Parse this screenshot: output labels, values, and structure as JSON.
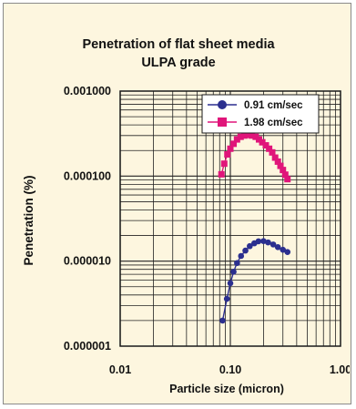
{
  "chart_data": {
    "type": "scatter",
    "title": "Penetration of flat sheet media",
    "subtitle": "ULPA grade",
    "xlabel": "Particle size (micron)",
    "ylabel": "Penetration (%)",
    "x_scale": "log",
    "y_scale": "log",
    "xlim": [
      0.01,
      1.0
    ],
    "ylim": [
      1e-06,
      0.001
    ],
    "x_ticks": [
      "0.01",
      "0.10",
      "1.00"
    ],
    "y_ticks": [
      "0.001000",
      "0.000100",
      "0.000010",
      "0.000001"
    ],
    "grid": true,
    "legend_position": "top-right",
    "series": [
      {
        "name": "0.91 cm/sec",
        "color": "#2b2f8f",
        "marker": "circle",
        "x": [
          0.085,
          0.093,
          0.1,
          0.107,
          0.115,
          0.125,
          0.137,
          0.15,
          0.165,
          0.18,
          0.2,
          0.22,
          0.245,
          0.27,
          0.3,
          0.33
        ],
        "y": [
          2e-06,
          3.6e-06,
          5.5e-06,
          7.5e-06,
          9.5e-06,
          1.15e-05,
          1.33e-05,
          1.5e-05,
          1.62e-05,
          1.71e-05,
          1.72e-05,
          1.66e-05,
          1.57e-05,
          1.46e-05,
          1.36e-05,
          1.28e-05
        ]
      },
      {
        "name": "1.98 cm/sec",
        "color": "#e0157a",
        "marker": "square",
        "x": [
          0.083,
          0.088,
          0.094,
          0.1,
          0.107,
          0.115,
          0.124,
          0.134,
          0.145,
          0.157,
          0.17,
          0.182,
          0.195,
          0.21,
          0.225,
          0.24,
          0.255,
          0.27,
          0.285,
          0.3,
          0.315,
          0.33
        ],
        "y": [
          0.000105,
          0.00014,
          0.00018,
          0.00021,
          0.00024,
          0.00027,
          0.00029,
          0.0003,
          0.000305,
          0.0003,
          0.00029,
          0.00027,
          0.00025,
          0.00023,
          0.00021,
          0.00019,
          0.000165,
          0.000148,
          0.000132,
          0.000118,
          0.000104,
          9.2e-05
        ]
      }
    ]
  }
}
